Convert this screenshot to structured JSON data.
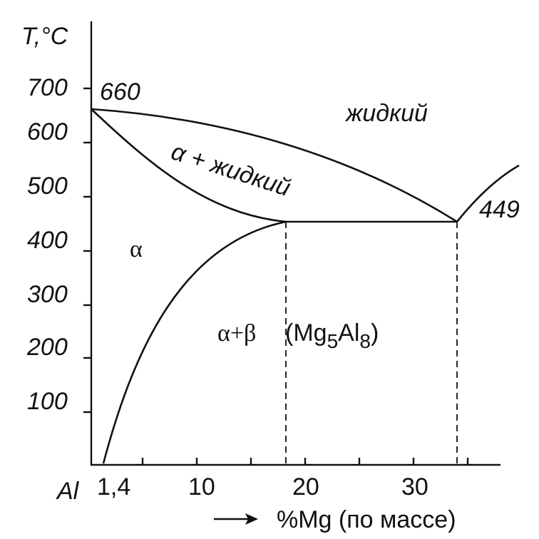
{
  "axes": {
    "y_title": "T,°C",
    "x_title": "%Mg (по массе)",
    "origin_label": "Al",
    "y_ticks": [
      "700",
      "600",
      "500",
      "400",
      "300",
      "200",
      "100"
    ],
    "x_ticks": [
      "1,4",
      "10",
      "20",
      "30"
    ]
  },
  "labels": {
    "melting_point": "660",
    "eutectic": "449",
    "liquid": "жидкий",
    "alpha_liquid": "α + жидкий",
    "alpha": "α",
    "alpha_beta": "α+β",
    "beta_parts": [
      "(Mg",
      "5",
      "Al",
      "8",
      ")"
    ]
  }
}
